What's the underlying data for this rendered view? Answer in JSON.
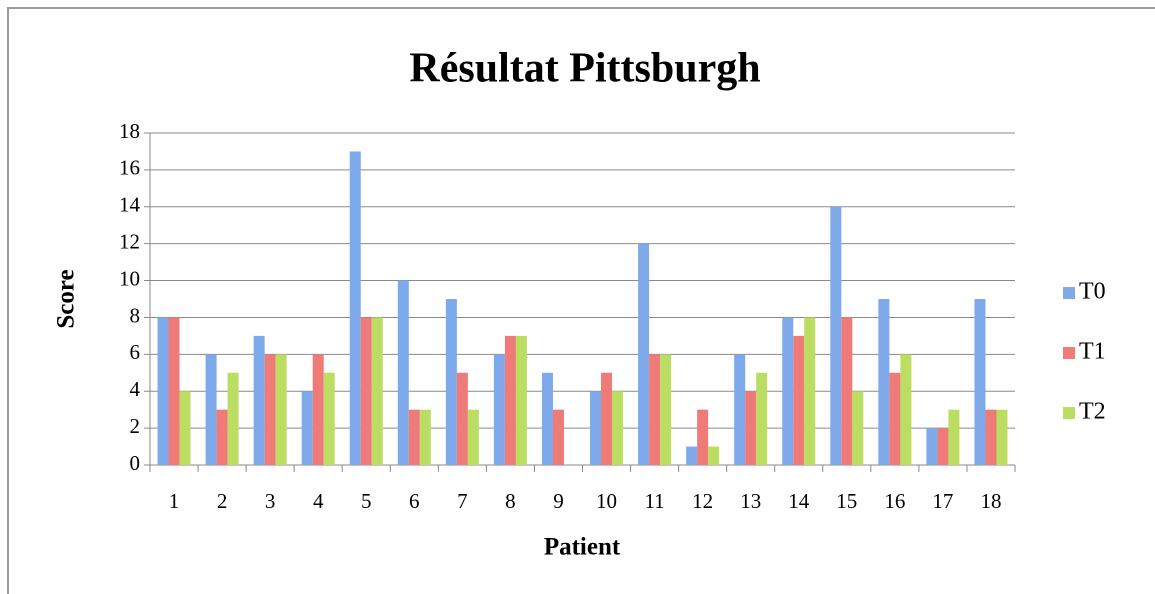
{
  "chart_data": {
    "type": "bar",
    "title": "Résultat Pittsburgh",
    "x_label": "Patient",
    "y_label": "Score",
    "categories": [
      "1",
      "2",
      "3",
      "4",
      "5",
      "6",
      "7",
      "8",
      "9",
      "10",
      "11",
      "12",
      "13",
      "14",
      "15",
      "16",
      "17",
      "18"
    ],
    "series": [
      {
        "name": "T0",
        "color": "#7ea9ea",
        "values": [
          8,
          6,
          7,
          4,
          17,
          10,
          9,
          6,
          5,
          4,
          12,
          1,
          6,
          8,
          14,
          9,
          2,
          9
        ]
      },
      {
        "name": "T1",
        "color": "#ee7b78",
        "values": [
          8,
          3,
          6,
          6,
          8,
          3,
          5,
          7,
          3,
          5,
          6,
          3,
          4,
          7,
          8,
          5,
          2,
          3
        ]
      },
      {
        "name": "T2",
        "color": "#badd62",
        "values": [
          4,
          5,
          6,
          5,
          8,
          3,
          3,
          7,
          0,
          4,
          6,
          1,
          5,
          8,
          4,
          6,
          3,
          3
        ]
      }
    ],
    "ylim": [
      0,
      18
    ],
    "yticks": [
      0,
      2,
      4,
      6,
      8,
      10,
      12,
      14,
      16,
      18
    ],
    "grid": true,
    "legend": "right"
  }
}
